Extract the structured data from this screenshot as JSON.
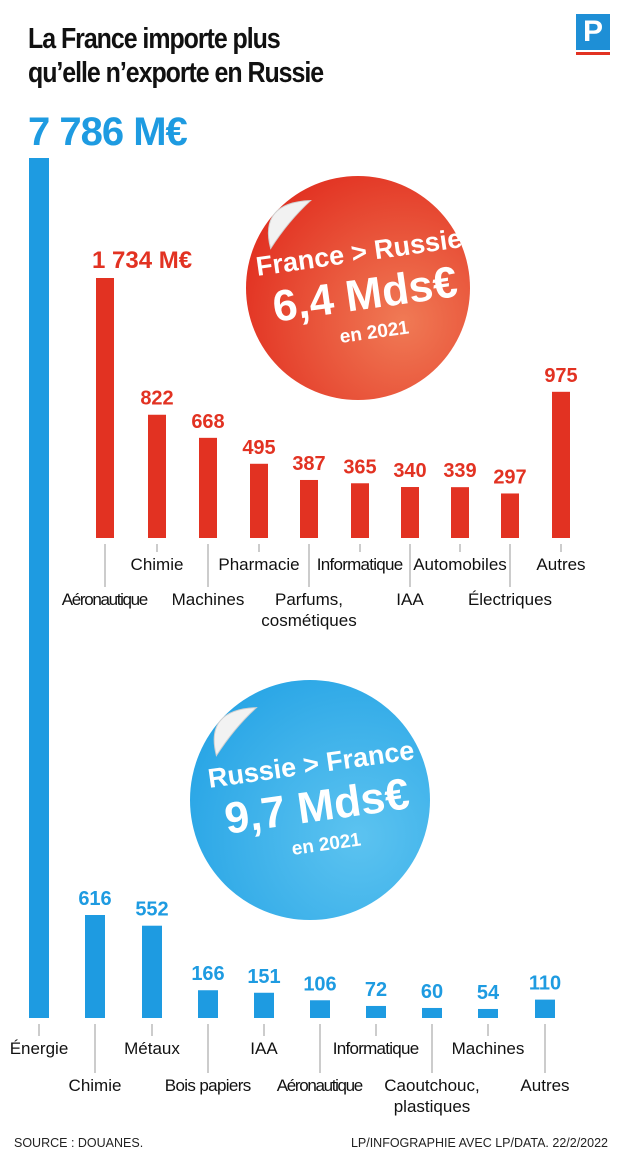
{
  "header": {
    "title_line1": "La France importe plus",
    "title_line2": "qu’elle n’exporte en Russie",
    "logo": "P"
  },
  "colors": {
    "exports": "#e23222",
    "imports": "#1e9be1",
    "text": "#111111",
    "tick": "#999999"
  },
  "chart_data": [
    {
      "type": "bar",
      "name": "exports",
      "badge": {
        "line1": "France > Russie",
        "line2": "6,4 Mds€",
        "line3": "en 2021"
      },
      "categories": [
        "Aéronautique",
        "Chimie",
        "Machines",
        "Pharmacie",
        "Parfums, cosmétiques",
        "Informatique",
        "IAA",
        "Automobiles",
        "Électriques",
        "Autres"
      ],
      "category_lines": [
        [
          "Aéronautique"
        ],
        [
          "Chimie"
        ],
        [
          "Machines"
        ],
        [
          "Pharmacie"
        ],
        [
          "Parfums,",
          "cosmétiques"
        ],
        [
          "Informatique"
        ],
        [
          "IAA"
        ],
        [
          "Automobiles"
        ],
        [
          "Électriques"
        ],
        [
          "Autres"
        ]
      ],
      "values": [
        1734,
        822,
        668,
        495,
        387,
        365,
        340,
        339,
        297,
        975
      ],
      "value_labels": [
        "1 734 M€",
        "822",
        "668",
        "495",
        "387",
        "365",
        "340",
        "339",
        "297",
        "975"
      ],
      "label_row": [
        "low",
        "high",
        "low",
        "high",
        "low",
        "high",
        "low",
        "high",
        "low",
        "high"
      ]
    },
    {
      "type": "bar",
      "name": "imports",
      "badge": {
        "line1": "Russie > France",
        "line2": "9,7 Mds€",
        "line3": "en 2021"
      },
      "categories": [
        "Énergie",
        "Chimie",
        "Métaux",
        "Bois papiers",
        "IAA",
        "Aéronautique",
        "Informatique",
        "Caoutchouc, plastiques",
        "Machines",
        "Autres"
      ],
      "category_lines": [
        [
          "Énergie"
        ],
        [
          "Chimie"
        ],
        [
          "Métaux"
        ],
        [
          "Bois papiers"
        ],
        [
          "IAA"
        ],
        [
          "Aéronautique"
        ],
        [
          "Informatique"
        ],
        [
          "Caoutchouc,",
          "plastiques"
        ],
        [
          "Machines"
        ],
        [
          "Autres"
        ]
      ],
      "values": [
        7786,
        616,
        552,
        166,
        151,
        106,
        72,
        60,
        54,
        110
      ],
      "value_labels": [
        "7 786 M€",
        "616",
        "552",
        "166",
        "151",
        "106",
        "72",
        "60",
        "54",
        "110"
      ],
      "label_row": [
        "high",
        "low",
        "high",
        "low",
        "high",
        "low",
        "high",
        "low",
        "high",
        "low"
      ]
    }
  ],
  "footer": {
    "source": "SOURCE : DOUANES.",
    "credit": "LP/INFOGRAPHIE AVEC LP/DATA.  22/2/2022"
  }
}
